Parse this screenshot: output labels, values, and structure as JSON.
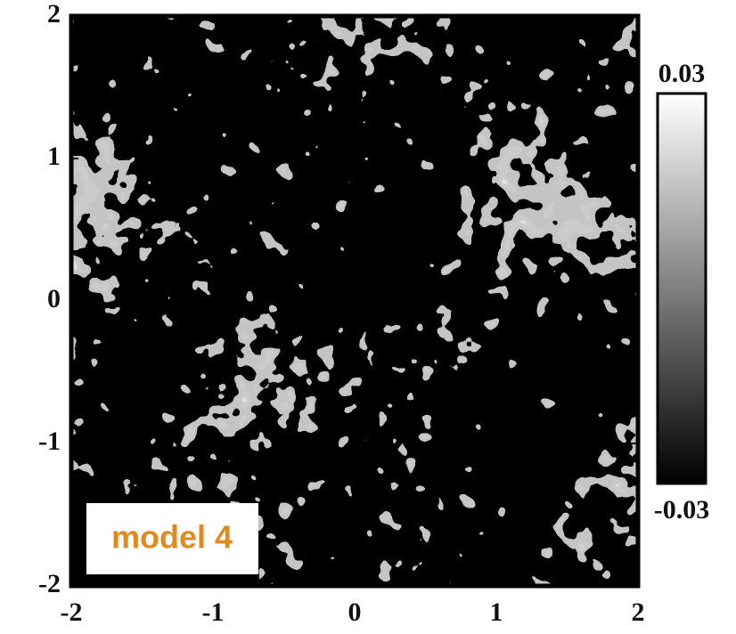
{
  "chart_data": {
    "type": "heatmap",
    "annotation": "model 4",
    "xlim": [
      -2,
      2
    ],
    "xticks": [
      -2,
      -1,
      0,
      1,
      2
    ],
    "ylim": [
      -2,
      2
    ],
    "yticks": [
      -2,
      -1,
      0,
      1,
      2
    ],
    "colorbar_lim": [
      -0.03,
      0.03
    ],
    "colorbar_ticks": [
      -0.03,
      0.03
    ],
    "colormap": [
      "#000000",
      "#ffffff"
    ]
  }
}
